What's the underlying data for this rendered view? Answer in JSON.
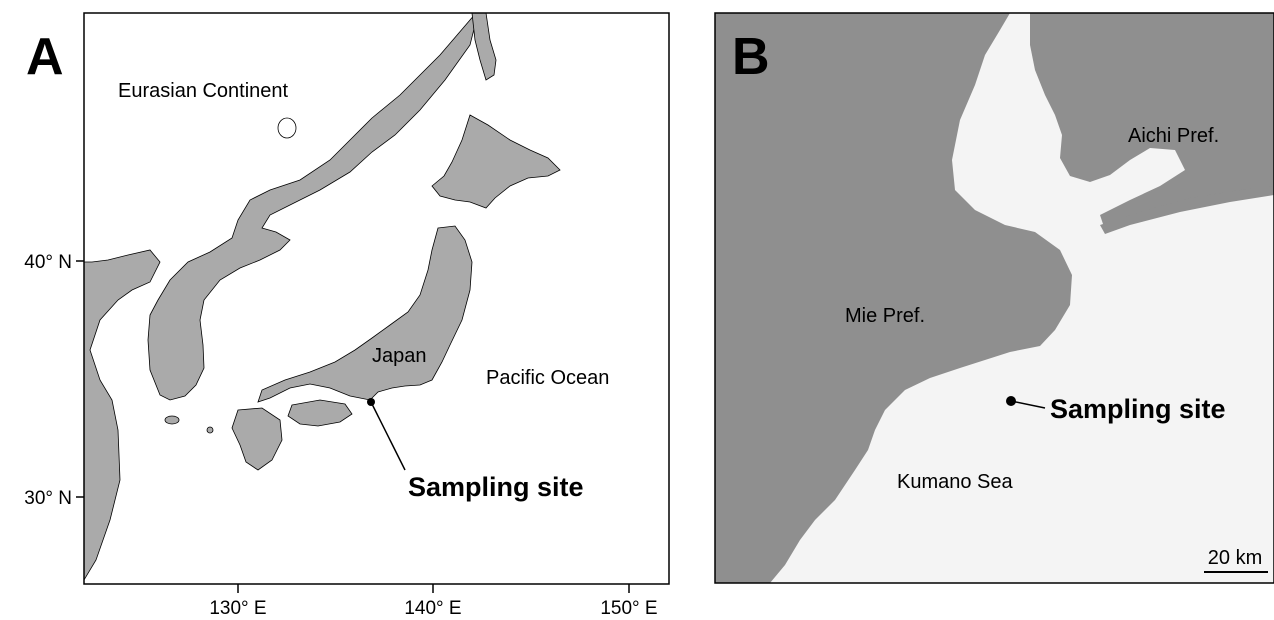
{
  "panel_a": {
    "letter": "A",
    "labels": {
      "continent": "Eurasian Continent",
      "country": "Japan",
      "ocean": "Pacific Ocean",
      "site": "Sampling site"
    },
    "lat_ticks": [
      "40° N",
      "30° N"
    ],
    "lon_ticks": [
      "130° E",
      "140° E",
      "150° E"
    ]
  },
  "panel_b": {
    "letter": "B",
    "labels": {
      "aichi": "Aichi Pref.",
      "mie": "Mie Pref.",
      "sea": "Kumano Sea",
      "site": "Sampling site",
      "scale": "20 km"
    }
  },
  "colors": {
    "land": "#aaaaaa",
    "land_b": "#8f8f8f",
    "sea": "#ffffff",
    "sea_b": "#f4f4f4",
    "frame": "#000000"
  }
}
